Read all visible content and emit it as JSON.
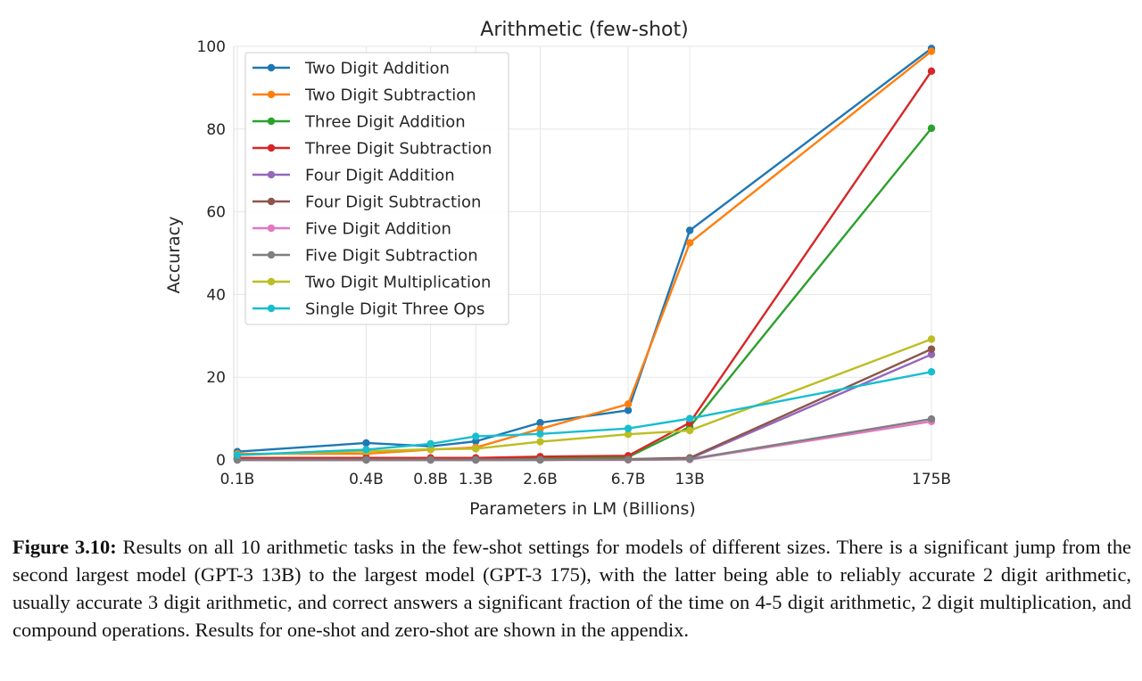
{
  "chart_data": {
    "type": "line",
    "title": "Arithmetic (few-shot)",
    "xlabel": "Parameters in LM (Billions)",
    "ylabel": "Accuracy",
    "x": [
      "0.1B",
      "0.4B",
      "0.8B",
      "1.3B",
      "2.6B",
      "6.7B",
      "13B",
      "175B"
    ],
    "x_numeric": [
      0.1,
      0.4,
      0.8,
      1.3,
      2.6,
      6.7,
      13,
      175
    ],
    "x_scale": "log",
    "ylim": [
      0,
      100
    ],
    "yticks": [
      0,
      20,
      40,
      60,
      80,
      100
    ],
    "grid": true,
    "legend_position": "top-left",
    "series": [
      {
        "name": "Two Digit Addition",
        "color": "#1f77b4",
        "values": [
          2.0,
          4.1,
          3.3,
          4.5,
          9.0,
          12.0,
          55.5,
          99.5
        ]
      },
      {
        "name": "Two Digit Subtraction",
        "color": "#ff7f0e",
        "values": [
          1.5,
          1.5,
          2.5,
          3.0,
          7.5,
          13.5,
          52.5,
          98.8
        ]
      },
      {
        "name": "Three Digit Addition",
        "color": "#2ca02c",
        "values": [
          0.3,
          0.3,
          0.2,
          0.3,
          0.5,
          0.7,
          8.0,
          80.2
        ]
      },
      {
        "name": "Three Digit Subtraction",
        "color": "#d62728",
        "values": [
          0.5,
          0.5,
          0.5,
          0.5,
          0.8,
          1.0,
          9.0,
          94.0
        ]
      },
      {
        "name": "Four Digit Addition",
        "color": "#9467bd",
        "values": [
          0.0,
          0.0,
          0.0,
          0.0,
          0.0,
          0.1,
          0.3,
          25.5
        ]
      },
      {
        "name": "Four Digit Subtraction",
        "color": "#8c564b",
        "values": [
          0.1,
          0.1,
          0.1,
          0.1,
          0.1,
          0.2,
          0.5,
          26.8
        ]
      },
      {
        "name": "Five Digit Addition",
        "color": "#e377c2",
        "values": [
          0.0,
          0.0,
          0.0,
          0.0,
          0.0,
          0.0,
          0.1,
          9.3
        ]
      },
      {
        "name": "Five Digit Subtraction",
        "color": "#7f7f7f",
        "values": [
          0.0,
          0.0,
          0.0,
          0.0,
          0.0,
          0.1,
          0.2,
          9.9
        ]
      },
      {
        "name": "Two Digit Multiplication",
        "color": "#bcbd22",
        "values": [
          1.2,
          2.1,
          2.6,
          2.7,
          4.4,
          6.2,
          7.1,
          29.2
        ]
      },
      {
        "name": "Single Digit Three Ops",
        "color": "#17becf",
        "values": [
          1.2,
          2.5,
          3.9,
          5.7,
          6.3,
          7.6,
          10.0,
          21.3
        ]
      }
    ]
  },
  "caption": {
    "label": "Figure 3.10:",
    "text": "Results on all 10 arithmetic tasks in the few-shot settings for models of different sizes. There is a significant jump from the second largest model (GPT-3 13B) to the largest model (GPT-3 175), with the latter being able to reliably accurate 2 digit arithmetic, usually accurate 3 digit arithmetic, and correct answers a significant fraction of the time on 4-5 digit arithmetic, 2 digit multiplication, and compound operations. Results for one-shot and zero-shot are shown in the appendix."
  }
}
